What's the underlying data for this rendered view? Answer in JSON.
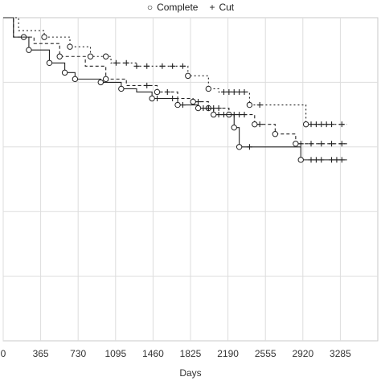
{
  "chart_data": {
    "type": "line",
    "subtype": "kaplan-meier survival curves",
    "xlabel": "Days",
    "ylabel": "",
    "title": "",
    "x_ticks": [
      0,
      365,
      730,
      1095,
      1460,
      1825,
      2190,
      2555,
      2920,
      3285
    ],
    "x_tick_labels": [
      "0",
      "365",
      "730",
      "1095",
      "1460",
      "1825",
      "2190",
      "2555",
      "2920",
      "3285"
    ],
    "xlim": [
      0,
      3650
    ],
    "ylim": [
      0,
      1.0
    ],
    "y_gridlines": [
      0.2,
      0.4,
      0.6,
      0.8
    ],
    "y_tick_labels_visible": false,
    "grid": true,
    "legend_position": "top-center",
    "legend": [
      {
        "symbol": "circle",
        "label": "Complete"
      },
      {
        "symbol": "plus",
        "label": "Cut"
      }
    ],
    "series": [
      {
        "line_style": "dotted",
        "steps": [
          [
            0,
            1.0
          ],
          [
            150,
            0.96
          ],
          [
            400,
            0.94
          ],
          [
            650,
            0.91
          ],
          [
            850,
            0.88
          ],
          [
            1050,
            0.86
          ],
          [
            1300,
            0.85
          ],
          [
            1700,
            0.85
          ],
          [
            1800,
            0.82
          ],
          [
            2000,
            0.78
          ],
          [
            2100,
            0.77
          ],
          [
            2400,
            0.73
          ],
          [
            2700,
            0.73
          ],
          [
            2950,
            0.67
          ],
          [
            3350,
            0.67
          ]
        ],
        "events": [
          400,
          650,
          850,
          1000,
          1800,
          2000,
          2400,
          2950
        ],
        "censors": [
          1100,
          1200,
          1300,
          1400,
          1550,
          1650,
          1750,
          2150,
          2200,
          2250,
          2300,
          2350,
          2500,
          3000,
          3050,
          3100,
          3150,
          3200,
          3300
        ]
      },
      {
        "line_style": "dashed",
        "steps": [
          [
            0,
            1.0
          ],
          [
            100,
            0.94
          ],
          [
            300,
            0.92
          ],
          [
            550,
            0.88
          ],
          [
            800,
            0.85
          ],
          [
            1000,
            0.81
          ],
          [
            1200,
            0.79
          ],
          [
            1500,
            0.77
          ],
          [
            1700,
            0.75
          ],
          [
            1850,
            0.74
          ],
          [
            2000,
            0.72
          ],
          [
            2200,
            0.7
          ],
          [
            2450,
            0.67
          ],
          [
            2650,
            0.64
          ],
          [
            2850,
            0.61
          ],
          [
            3350,
            0.61
          ]
        ],
        "events": [
          200,
          550,
          1000,
          1500,
          1850,
          2000,
          2200,
          2450,
          2650,
          2850
        ],
        "censors": [
          1400,
          1600,
          1900,
          2000,
          2050,
          2100,
          2250,
          2300,
          2350,
          2500,
          2900,
          3000,
          3100,
          3200,
          3300
        ]
      },
      {
        "line_style": "solid",
        "steps": [
          [
            0,
            1.0
          ],
          [
            100,
            0.94
          ],
          [
            250,
            0.9
          ],
          [
            450,
            0.86
          ],
          [
            600,
            0.83
          ],
          [
            700,
            0.81
          ],
          [
            950,
            0.8
          ],
          [
            1150,
            0.78
          ],
          [
            1300,
            0.77
          ],
          [
            1450,
            0.75
          ],
          [
            1700,
            0.73
          ],
          [
            1900,
            0.72
          ],
          [
            2050,
            0.7
          ],
          [
            2250,
            0.66
          ],
          [
            2300,
            0.6
          ],
          [
            2900,
            0.56
          ],
          [
            3350,
            0.56
          ]
        ],
        "events": [
          250,
          450,
          600,
          700,
          950,
          1150,
          1450,
          1700,
          1900,
          2050,
          2250,
          2300,
          2900
        ],
        "censors": [
          1500,
          1650,
          1750,
          1950,
          2000,
          2100,
          2150,
          2400,
          3000,
          3050,
          3100,
          3200,
          3250,
          3300
        ]
      }
    ]
  }
}
